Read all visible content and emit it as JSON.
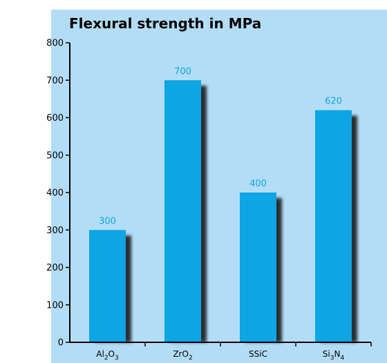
{
  "chart_data": {
    "type": "bar",
    "title": "Flexural strength in MPa",
    "categories": [
      {
        "base": "Al",
        "parts": [
          [
            "2",
            "O"
          ],
          [
            "3",
            ""
          ]
        ]
      },
      {
        "base": "ZrO",
        "parts": [
          [
            "2",
            ""
          ]
        ]
      },
      {
        "base": "SSiC",
        "parts": []
      },
      {
        "base": "Si",
        "parts": [
          [
            "3",
            "N"
          ],
          [
            "4",
            ""
          ]
        ]
      }
    ],
    "values": [
      300,
      700,
      400,
      620
    ],
    "data_labels": [
      "300",
      "700",
      "400",
      "620"
    ],
    "yticks": [
      0,
      100,
      200,
      300,
      400,
      500,
      600,
      700,
      800
    ],
    "ylim": [
      0,
      800
    ],
    "grid": false,
    "bar_color": "#0ea5e4",
    "label_color": "#0ea5e4",
    "shadow_color": "#1a1a1a",
    "background_color": "#b3ddf6"
  }
}
